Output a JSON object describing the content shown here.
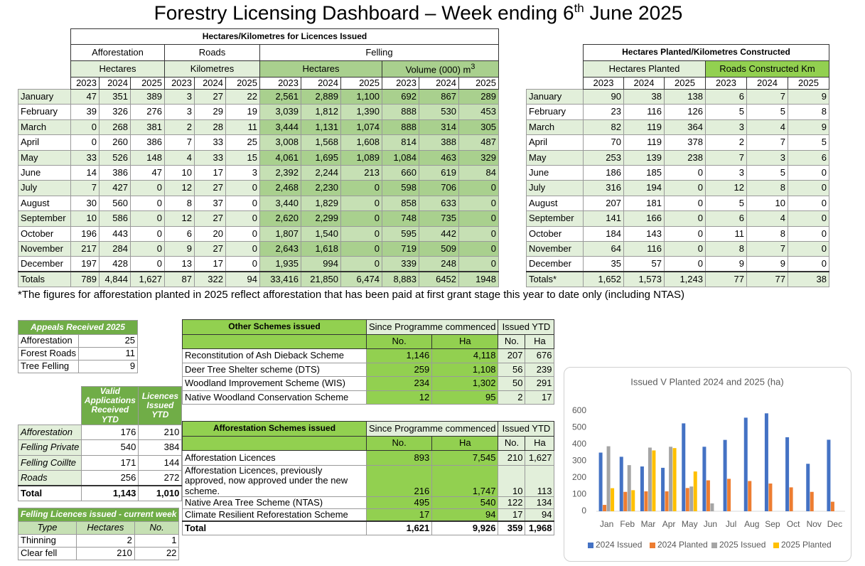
{
  "title": {
    "pre": "Forestry Licensing Dashboard – Week ending 6",
    "sup": "th",
    "post": "June 2025"
  },
  "issued_table": {
    "title": "Hectares/Kilometres for Licences Issued",
    "groups": [
      "Afforestation",
      "Roads",
      "Felling"
    ],
    "units": [
      "Hectares",
      "Kilometres",
      "Hectares",
      "Volume (000) m"
    ],
    "units_sup": "3",
    "years": [
      "2023",
      "2024",
      "2025"
    ],
    "rows": [
      [
        "January",
        "47",
        "351",
        "389",
        "3",
        "27",
        "22",
        "2,561",
        "2,889",
        "1,100",
        "692",
        "867",
        "289"
      ],
      [
        "February",
        "39",
        "326",
        "276",
        "3",
        "29",
        "19",
        "3,039",
        "1,812",
        "1,390",
        "888",
        "530",
        "453"
      ],
      [
        "March",
        "0",
        "268",
        "381",
        "2",
        "28",
        "11",
        "3,444",
        "1,131",
        "1,074",
        "888",
        "314",
        "305"
      ],
      [
        "April",
        "0",
        "260",
        "386",
        "7",
        "33",
        "25",
        "3,008",
        "1,568",
        "1,608",
        "814",
        "388",
        "487"
      ],
      [
        "May",
        "33",
        "526",
        "148",
        "4",
        "33",
        "15",
        "4,061",
        "1,695",
        "1,089",
        "1,084",
        "463",
        "329"
      ],
      [
        "June",
        "14",
        "386",
        "47",
        "10",
        "17",
        "3",
        "2,392",
        "2,244",
        "213",
        "660",
        "619",
        "84"
      ],
      [
        "July",
        "7",
        "427",
        "0",
        "12",
        "27",
        "0",
        "2,468",
        "2,230",
        "0",
        "598",
        "706",
        "0"
      ],
      [
        "August",
        "30",
        "560",
        "0",
        "8",
        "37",
        "0",
        "3,440",
        "1,829",
        "0",
        "858",
        "633",
        "0"
      ],
      [
        "September",
        "10",
        "586",
        "0",
        "12",
        "27",
        "0",
        "2,620",
        "2,299",
        "0",
        "748",
        "735",
        "0"
      ],
      [
        "October",
        "196",
        "443",
        "0",
        "6",
        "20",
        "0",
        "1,807",
        "1,540",
        "0",
        "595",
        "442",
        "0"
      ],
      [
        "November",
        "217",
        "284",
        "0",
        "9",
        "27",
        "0",
        "2,643",
        "1,618",
        "0",
        "719",
        "509",
        "0"
      ],
      [
        "December",
        "197",
        "428",
        "0",
        "13",
        "17",
        "0",
        "1,935",
        "994",
        "0",
        "339",
        "248",
        "0"
      ]
    ],
    "total": [
      "Totals",
      "789",
      "4,844",
      "1,627",
      "87",
      "322",
      "94",
      "33,416",
      "21,850",
      "6,474",
      "8,883",
      "6452",
      "1948"
    ]
  },
  "planted_table": {
    "title": "Hectares Planted/Kilometres Constructed",
    "units": [
      "Hectares Planted",
      "Roads Constructed Km"
    ],
    "years": [
      "2023",
      "2024",
      "2025"
    ],
    "rows": [
      [
        "January",
        "90",
        "38",
        "138",
        "6",
        "7",
        "9"
      ],
      [
        "February",
        "23",
        "116",
        "126",
        "5",
        "5",
        "8"
      ],
      [
        "March",
        "82",
        "119",
        "364",
        "3",
        "4",
        "9"
      ],
      [
        "April",
        "70",
        "119",
        "378",
        "2",
        "7",
        "5"
      ],
      [
        "May",
        "253",
        "139",
        "238",
        "7",
        "3",
        "6"
      ],
      [
        "June",
        "186",
        "185",
        "0",
        "3",
        "5",
        "0"
      ],
      [
        "July",
        "316",
        "194",
        "0",
        "12",
        "8",
        "0"
      ],
      [
        "August",
        "207",
        "181",
        "0",
        "5",
        "10",
        "0"
      ],
      [
        "September",
        "141",
        "166",
        "0",
        "6",
        "4",
        "0"
      ],
      [
        "October",
        "184",
        "143",
        "0",
        "11",
        "8",
        "0"
      ],
      [
        "November",
        "64",
        "116",
        "0",
        "8",
        "7",
        "0"
      ],
      [
        "December",
        "35",
        "57",
        "0",
        "9",
        "9",
        "0"
      ]
    ],
    "total": [
      "Totals*",
      "1,652",
      "1,573",
      "1,243",
      "77",
      "77",
      "38"
    ]
  },
  "footnote": "*The figures for afforestation planted in 2025 reflect afforestation that has been paid at first grant stage this year to date only (including NTAS)",
  "appeals": {
    "title": "Appeals Received 2025",
    "rows": [
      [
        "Afforestation",
        "25"
      ],
      [
        "Forest Roads",
        "11"
      ],
      [
        "Tree Felling",
        "9"
      ]
    ]
  },
  "applications": {
    "headers": [
      "Valid Applications Received YTD",
      "Licences Issued YTD"
    ],
    "rows": [
      [
        "Afforestation",
        "176",
        "210"
      ],
      [
        "Felling Private",
        "540",
        "384"
      ],
      [
        "Felling Coillte",
        "171",
        "144"
      ],
      [
        "Roads",
        "256",
        "272"
      ]
    ],
    "total": [
      "Total",
      "1,143",
      "1,010"
    ]
  },
  "felling_week": {
    "title": "Felling Licences issued - current week",
    "headers": [
      "Type",
      "Hectares",
      "No."
    ],
    "rows": [
      [
        "Thinning",
        "2",
        "1"
      ],
      [
        "Clear fell",
        "210",
        "22"
      ]
    ]
  },
  "other_schemes": {
    "title": "Other Schemes issued",
    "groups": [
      "Since Programme commenced",
      "Issued YTD"
    ],
    "subheaders": [
      "No.",
      "Ha",
      "No.",
      "Ha"
    ],
    "rows": [
      [
        "Reconstitution of Ash Dieback Scheme",
        "1,146",
        "4,118",
        "207",
        "676"
      ],
      [
        "Deer Tree Shelter scheme (DTS)",
        "259",
        "1,108",
        "56",
        "239"
      ],
      [
        "Woodland Improvement Scheme (WIS)",
        "234",
        "1,302",
        "50",
        "291"
      ],
      [
        "Native Woodland Conservation Scheme",
        "12",
        "95",
        "2",
        "17"
      ]
    ]
  },
  "afforestation_schemes": {
    "title": "Afforestation Schemes issued",
    "groups": [
      "Since Programme commenced",
      "Issued YTD"
    ],
    "subheaders": [
      "No.",
      "Ha",
      "No.",
      "Ha"
    ],
    "rows": [
      [
        "Afforestation Licences",
        "893",
        "7,545",
        "210",
        "1,627"
      ],
      [
        "Afforestation Licences, previously approved, now approved under the new scheme.",
        "216",
        "1,747",
        "10",
        "113"
      ],
      [
        "Native Area Tree Scheme (NTAS)",
        "495",
        "540",
        "122",
        "134"
      ],
      [
        "Climate Resilient Reforestation Scheme",
        "17",
        "94",
        "17",
        "94"
      ]
    ],
    "total": [
      "Total",
      "1,621",
      "9,926",
      "359",
      "1,968"
    ]
  },
  "chart_data": {
    "type": "bar",
    "title": "Issued V Planted 2024 and 2025 (ha)",
    "categories": [
      "Jan",
      "Feb",
      "Mar",
      "Apr",
      "May",
      "Jun",
      "Jul",
      "Aug",
      "Sep",
      "Oct",
      "Nov",
      "Dec"
    ],
    "series": [
      {
        "name": "2024 Issued",
        "color": "#4472c4",
        "values": [
          351,
          326,
          268,
          260,
          526,
          386,
          427,
          560,
          586,
          443,
          284,
          428
        ]
      },
      {
        "name": "2024 Planted",
        "color": "#ed7d31",
        "values": [
          38,
          116,
          119,
          119,
          139,
          185,
          194,
          181,
          166,
          143,
          116,
          57
        ]
      },
      {
        "name": "2025 Issued",
        "color": "#a5a5a5",
        "values": [
          389,
          276,
          381,
          386,
          148,
          47,
          0,
          0,
          0,
          0,
          0,
          0
        ]
      },
      {
        "name": "2025 Planted",
        "color": "#ffc000",
        "values": [
          138,
          126,
          364,
          378,
          238,
          0,
          0,
          0,
          0,
          0,
          0,
          0
        ]
      }
    ],
    "ylim": [
      0,
      600
    ],
    "yticks": [
      0,
      100,
      200,
      300,
      400,
      500,
      600
    ],
    "grid": false,
    "legend": "bottom"
  }
}
